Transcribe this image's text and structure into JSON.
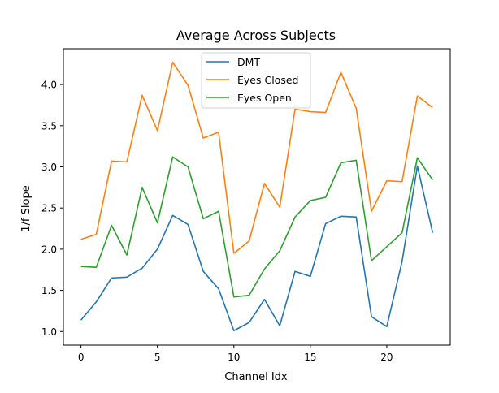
{
  "chart_data": {
    "type": "line",
    "title": "Average Across Subjects",
    "xlabel": "Channel Idx",
    "ylabel": "1/f Slope",
    "x": [
      0,
      1,
      2,
      3,
      4,
      5,
      6,
      7,
      8,
      9,
      10,
      11,
      12,
      13,
      14,
      15,
      16,
      17,
      18,
      19,
      20,
      21,
      22,
      23
    ],
    "xlim": [
      -1.15,
      24.15
    ],
    "ylim": [
      0.835,
      4.435
    ],
    "xticks": [
      0,
      5,
      10,
      15,
      20
    ],
    "yticks": [
      1.0,
      1.5,
      2.0,
      2.5,
      3.0,
      3.5,
      4.0
    ],
    "xtick_labels": [
      "0",
      "5",
      "10",
      "15",
      "20"
    ],
    "ytick_labels": [
      "1.0",
      "1.5",
      "2.0",
      "2.5",
      "3.0",
      "3.5",
      "4.0"
    ],
    "grid": false,
    "legend_position": "top-center",
    "series": [
      {
        "name": "DMT",
        "color": "#1f77b4",
        "values": [
          1.14,
          1.36,
          1.65,
          1.66,
          1.77,
          2.0,
          2.41,
          2.3,
          1.73,
          1.52,
          1.01,
          1.11,
          1.39,
          1.07,
          1.73,
          1.67,
          2.31,
          2.4,
          2.39,
          1.18,
          1.06,
          1.85,
          3.01,
          2.2
        ]
      },
      {
        "name": "Eyes Closed",
        "color": "#ff7f0e",
        "values": [
          2.12,
          2.18,
          3.07,
          3.06,
          3.87,
          3.44,
          4.27,
          3.99,
          3.35,
          3.42,
          1.95,
          2.1,
          2.8,
          2.51,
          3.7,
          3.67,
          3.66,
          4.15,
          3.71,
          2.46,
          2.83,
          2.82,
          3.86,
          3.72
        ]
      },
      {
        "name": "Eyes Open",
        "color": "#2ca02c",
        "values": [
          1.79,
          1.78,
          2.29,
          1.93,
          2.75,
          2.32,
          3.12,
          3.0,
          2.37,
          2.46,
          1.42,
          1.44,
          1.76,
          1.98,
          2.39,
          2.59,
          2.63,
          3.05,
          3.08,
          1.86,
          2.03,
          2.2,
          3.11,
          2.84
        ]
      }
    ]
  }
}
